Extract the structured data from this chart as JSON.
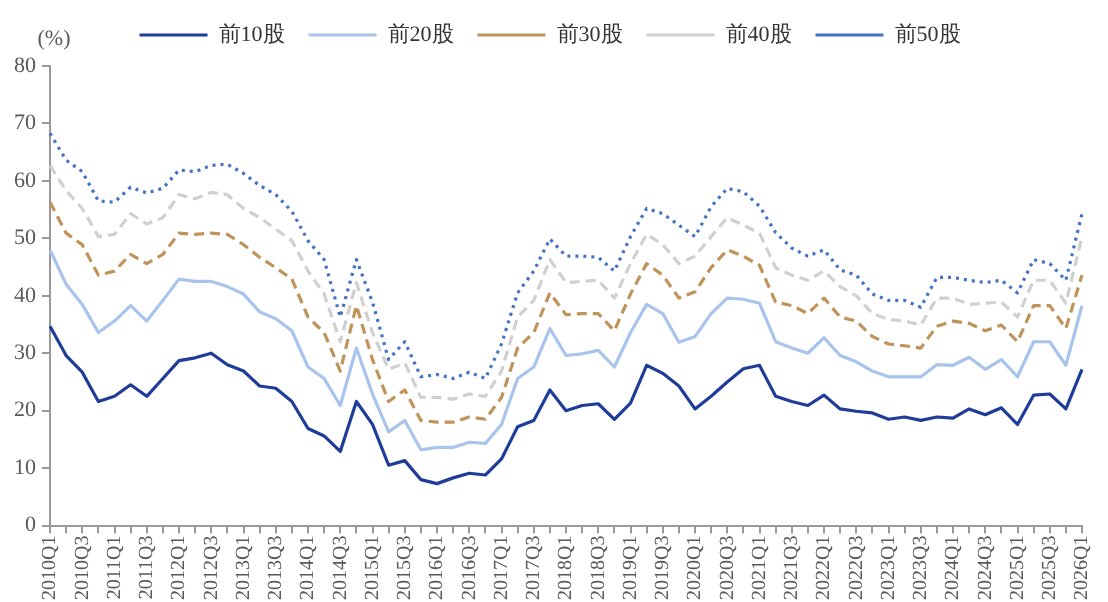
{
  "chart_data": {
    "type": "line",
    "ylabel": "(%)",
    "categories": [
      "2010Q1",
      null,
      "2010Q3",
      null,
      "2011Q1",
      null,
      "2011Q3",
      null,
      "2012Q1",
      null,
      "2012Q3",
      null,
      "2013Q1",
      null,
      "2013Q3",
      null,
      "2014Q1",
      null,
      "2014Q3",
      null,
      "2015Q1",
      null,
      "2015Q3",
      null,
      "2016Q1",
      null,
      "2016Q3",
      null,
      "2017Q1",
      null,
      "2017Q3",
      null,
      "2018Q1",
      null,
      "2018Q3",
      null,
      "2019Q1",
      null,
      "2019Q3",
      null,
      "2020Q1",
      null,
      "2020Q3",
      null,
      "2021Q1",
      null,
      "2021Q3",
      null,
      "2022Q1",
      null,
      "2022Q3",
      null,
      "2023Q1",
      null,
      "2023Q3",
      null,
      "2024Q1",
      null,
      "2024Q3",
      null,
      "2025Q1",
      null,
      "2025Q3",
      null,
      "2026Q1"
    ],
    "series": [
      {
        "name": "前10股",
        "color": "#1f3c99",
        "line_style": "solid",
        "values": [
          34.7,
          29.6,
          26.7,
          21.6,
          22.5,
          24.5,
          22.5,
          25.6,
          28.7,
          29.2,
          30,
          28,
          26.9,
          24.3,
          23.9,
          21.6,
          16.9,
          15.6,
          12.9,
          21.6,
          17.6,
          10.5,
          11.3,
          8,
          7.3,
          8.3,
          9.1,
          8.8,
          11.6,
          17.2,
          18.3,
          23.6,
          20,
          20.9,
          21.2,
          18.5,
          21.3,
          27.9,
          26.5,
          24.3,
          20.3,
          22.5,
          25,
          27.3,
          27.9,
          22.5,
          21.6,
          20.9,
          22.7,
          20.3,
          19.9,
          19.6,
          18.5,
          18.9,
          18.3,
          18.9,
          18.7,
          20.3,
          19.3,
          20.5,
          17.6,
          22.7,
          22.9,
          20.3,
          27.2
        ]
      },
      {
        "name": "前20股",
        "color": "#a9c4ec",
        "line_style": "solid",
        "values": [
          48,
          42,
          38.5,
          33.6,
          35.6,
          38.3,
          35.6,
          39.2,
          42.9,
          42.5,
          42.5,
          41.6,
          40.3,
          37.2,
          36,
          33.9,
          27.6,
          25.6,
          20.9,
          30.9,
          22.9,
          16.3,
          18.3,
          13.2,
          13.6,
          13.6,
          14.5,
          14.3,
          17.6,
          25.6,
          27.6,
          34.3,
          29.6,
          29.9,
          30.5,
          27.6,
          33.6,
          38.5,
          36.9,
          31.9,
          32.9,
          36.9,
          39.6,
          39.4,
          38.7,
          32,
          30.9,
          30,
          32.7,
          29.6,
          28.5,
          26.9,
          25.9,
          25.9,
          25.9,
          28,
          27.9,
          29.3,
          27.2,
          28.9,
          25.9,
          32,
          32,
          27.9,
          38.3
        ]
      },
      {
        "name": "前30股",
        "color": "#c0935a",
        "line_style": "dashed",
        "values": [
          56.3,
          50.9,
          48.9,
          43.6,
          44.3,
          47.2,
          45.6,
          47.2,
          50.9,
          50.7,
          50.9,
          50.7,
          48.9,
          46.7,
          44.9,
          42.9,
          36.3,
          33.6,
          26.9,
          38.3,
          28.9,
          21.6,
          23.6,
          18.3,
          18,
          18,
          18.9,
          18.5,
          22.3,
          30.9,
          33.6,
          40.5,
          36.7,
          36.9,
          36.9,
          33.9,
          40.3,
          45.6,
          43.6,
          39.6,
          40.7,
          44.9,
          48,
          46.9,
          45.3,
          38.9,
          38.3,
          36.9,
          39.6,
          36.3,
          35.6,
          32.9,
          31.6,
          31.3,
          30.9,
          34.7,
          35.6,
          35.2,
          33.9,
          34.9,
          32,
          38.3,
          38.3,
          34.3,
          43.6
        ]
      },
      {
        "name": "前40股",
        "color": "#d0d0d0",
        "line_style": "dashed",
        "values": [
          62.7,
          58.3,
          55.2,
          50.3,
          50.7,
          54.3,
          52.5,
          53.6,
          57.6,
          56.9,
          58,
          57.6,
          55.2,
          53.6,
          51.6,
          49.6,
          44.3,
          40.3,
          32,
          42.3,
          33.6,
          27.2,
          28.3,
          22.3,
          22.3,
          22,
          22.9,
          22.5,
          26.9,
          36.3,
          39.2,
          46.3,
          42.3,
          42.5,
          42.7,
          39.6,
          45.6,
          50.7,
          48.9,
          45.6,
          46.9,
          50.3,
          53.6,
          52.3,
          50.9,
          44.9,
          43.6,
          42.7,
          44.3,
          41.6,
          40,
          36.9,
          35.9,
          35.6,
          34.9,
          39.6,
          39.6,
          38.5,
          38.7,
          38.9,
          36.3,
          42.7,
          42.7,
          38.7,
          50.3
        ]
      },
      {
        "name": "前50股",
        "color": "#4472c4",
        "line_style": "dotted",
        "values": [
          68.3,
          63.6,
          61.6,
          56.5,
          56.3,
          58.9,
          57.9,
          58.7,
          61.9,
          61.6,
          62.7,
          62.9,
          61.3,
          59.2,
          57.6,
          54.7,
          49.6,
          46.3,
          36.3,
          46.3,
          38.9,
          28.9,
          32,
          25.9,
          26.3,
          25.6,
          26.7,
          25.6,
          31.6,
          40.5,
          44.3,
          49.9,
          46.9,
          46.9,
          46.7,
          44.3,
          50.3,
          55.2,
          54.3,
          52.3,
          50.3,
          55.5,
          58.7,
          58.1,
          55.6,
          51,
          48.3,
          46.9,
          48,
          44.5,
          43.6,
          40.3,
          39.2,
          39.2,
          38,
          43.2,
          43.2,
          42.7,
          42.3,
          42.7,
          40.5,
          46.3,
          45.6,
          42.7,
          54.3
        ]
      }
    ],
    "ylim": [
      0,
      80
    ],
    "yticks": [
      0,
      10,
      20,
      30,
      40,
      50,
      60,
      70,
      80
    ],
    "legend": "top"
  }
}
